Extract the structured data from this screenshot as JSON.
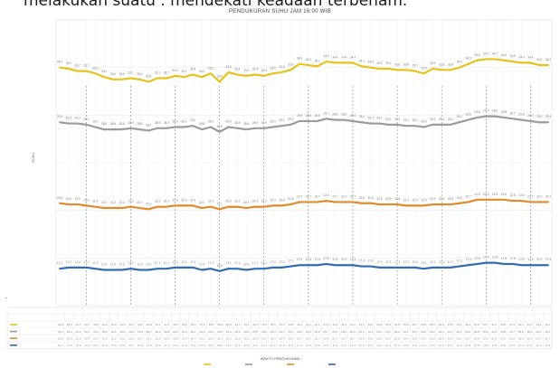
{
  "caption": "melakukan suatu . mendekati keadaan terbenam.",
  "chart_data": {
    "type": "line",
    "title": "PENGUKURAN SUHU JAM 16:00 WIB",
    "ylabel": "SUHU",
    "xlabel": "WAKTU PENGUKURAN",
    "grid": true,
    "legend": "table-left",
    "x_count": 56,
    "series": [
      {
        "name": "",
        "color": "#e6c21a",
        "values": [
          34.0,
          33.9,
          33.7,
          33.7,
          33.5,
          33.2,
          33.0,
          33.0,
          33.1,
          33.0,
          32.8,
          33.1,
          33.1,
          33.3,
          33.2,
          33.4,
          33.2,
          33.5,
          32.8,
          33.6,
          33.4,
          33.3,
          33.4,
          33.3,
          33.5,
          33.6,
          33.8,
          34.3,
          34.2,
          34.1,
          34.5,
          34.4,
          34.4,
          34.4,
          34.1,
          34.0,
          33.9,
          33.9,
          33.8,
          33.8,
          33.7,
          33.5,
          33.9,
          33.8,
          33.8,
          34.0,
          34.3,
          34.6,
          34.7,
          34.7,
          34.6,
          34.5,
          34.4,
          34.4,
          34.2,
          34.2
        ]
      },
      {
        "name": "",
        "color": "#9b9b9b",
        "values": [
          29.4,
          29.3,
          29.3,
          29.2,
          29.0,
          28.8,
          28.8,
          28.8,
          28.9,
          28.8,
          28.7,
          28.9,
          28.9,
          29.0,
          29.0,
          29.1,
          28.8,
          29.0,
          28.6,
          29.0,
          28.9,
          28.8,
          28.9,
          28.9,
          29.0,
          29.1,
          29.2,
          29.5,
          29.5,
          29.5,
          29.7,
          29.6,
          29.6,
          29.5,
          29.4,
          29.3,
          29.3,
          29.2,
          29.2,
          29.1,
          29.1,
          29.0,
          29.2,
          29.2,
          29.2,
          29.4,
          29.6,
          29.8,
          29.9,
          29.9,
          29.8,
          29.7,
          29.6,
          29.5,
          29.4,
          29.4
        ]
      },
      {
        "name": "",
        "color": "#e08a2b",
        "values": [
          22.6,
          22.5,
          22.5,
          22.4,
          22.3,
          22.2,
          22.2,
          22.2,
          22.3,
          22.2,
          22.1,
          22.3,
          22.3,
          22.4,
          22.4,
          22.4,
          22.2,
          22.3,
          22.1,
          22.3,
          22.3,
          22.2,
          22.3,
          22.3,
          22.4,
          22.4,
          22.5,
          22.7,
          22.7,
          22.7,
          22.8,
          22.7,
          22.7,
          22.7,
          22.6,
          22.6,
          22.5,
          22.5,
          22.5,
          22.4,
          22.4,
          22.4,
          22.5,
          22.5,
          22.5,
          22.6,
          22.7,
          22.9,
          22.9,
          22.9,
          22.9,
          22.8,
          22.8,
          22.7,
          22.7,
          22.7
        ]
      },
      {
        "name": "",
        "color": "#2f6db3",
        "values": [
          17.1,
          17.2,
          17.2,
          17.2,
          17.1,
          17.0,
          17.0,
          17.0,
          17.1,
          17.0,
          17.0,
          17.1,
          17.1,
          17.2,
          17.2,
          17.2,
          17.0,
          17.1,
          16.9,
          17.1,
          17.1,
          17.0,
          17.1,
          17.1,
          17.2,
          17.2,
          17.3,
          17.4,
          17.4,
          17.4,
          17.5,
          17.4,
          17.4,
          17.4,
          17.3,
          17.3,
          17.2,
          17.2,
          17.2,
          17.2,
          17.2,
          17.1,
          17.2,
          17.2,
          17.2,
          17.3,
          17.4,
          17.5,
          17.6,
          17.6,
          17.5,
          17.5,
          17.4,
          17.4,
          17.4,
          17.4
        ]
      }
    ],
    "ylim": [
      14,
      38
    ]
  }
}
